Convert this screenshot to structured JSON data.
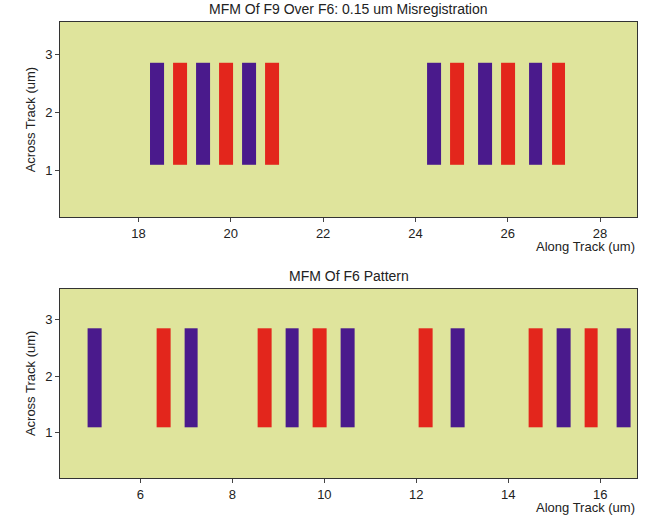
{
  "chart_data": [
    {
      "type": "heatmap",
      "title": "MFM Of F9 Over F6: 0.15 um Misregistration",
      "x_label": "Along Track (um)",
      "y_label": "Across Track (um)",
      "xlim": [
        16.3,
        28.8
      ],
      "ylim": [
        0.2,
        3.55
      ],
      "xticks": [
        18,
        20,
        22,
        24,
        26,
        28
      ],
      "yticks": [
        1,
        2,
        3
      ],
      "colors": [
        "#4a1a8c",
        "#e3261c"
      ],
      "zlim": [
        -1,
        1
      ],
      "cells": {
        "y": [
          1.1,
          2.85
        ],
        "stripes": [
          {
            "x0": 18.25,
            "x1": 18.55,
            "z": -1
          },
          {
            "x0": 18.75,
            "x1": 19.05,
            "z": 1
          },
          {
            "x0": 19.25,
            "x1": 19.55,
            "z": -1
          },
          {
            "x0": 19.75,
            "x1": 20.05,
            "z": 1
          },
          {
            "x0": 20.25,
            "x1": 20.55,
            "z": -1
          },
          {
            "x0": 20.75,
            "x1": 21.05,
            "z": 1
          },
          {
            "x0": 24.25,
            "x1": 24.55,
            "z": -1
          },
          {
            "x0": 24.75,
            "x1": 25.05,
            "z": 1
          },
          {
            "x0": 25.35,
            "x1": 25.65,
            "z": -1
          },
          {
            "x0": 25.85,
            "x1": 26.15,
            "z": 1
          },
          {
            "x0": 26.45,
            "x1": 26.75,
            "z": -1
          },
          {
            "x0": 26.95,
            "x1": 27.25,
            "z": 1
          }
        ]
      }
    },
    {
      "type": "heatmap",
      "title": "MFM Of F6 Pattern",
      "x_label": "Along Track (um)",
      "y_label": "Across Track (um)",
      "xlim": [
        4.25,
        16.8
      ],
      "ylim": [
        0.2,
        3.55
      ],
      "xticks": [
        6,
        8,
        10,
        12,
        14,
        16
      ],
      "yticks": [
        1,
        2,
        3
      ],
      "colors": [
        "#4a1a8c",
        "#e3261c"
      ],
      "zlim": [
        -1,
        1
      ],
      "cells": {
        "y": [
          1.1,
          2.85
        ],
        "stripes": [
          {
            "x0": 4.85,
            "x1": 5.15,
            "z": -1
          },
          {
            "x0": 6.35,
            "x1": 6.65,
            "z": 1
          },
          {
            "x0": 6.95,
            "x1": 7.25,
            "z": -1
          },
          {
            "x0": 8.55,
            "x1": 8.85,
            "z": 1
          },
          {
            "x0": 9.15,
            "x1": 9.45,
            "z": -1
          },
          {
            "x0": 9.75,
            "x1": 10.05,
            "z": 1
          },
          {
            "x0": 10.35,
            "x1": 10.65,
            "z": -1
          },
          {
            "x0": 12.05,
            "x1": 12.35,
            "z": 1
          },
          {
            "x0": 12.75,
            "x1": 13.05,
            "z": -1
          },
          {
            "x0": 14.45,
            "x1": 14.75,
            "z": 1
          },
          {
            "x0": 15.05,
            "x1": 15.35,
            "z": -1
          },
          {
            "x0": 15.65,
            "x1": 15.95,
            "z": 1
          },
          {
            "x0": 16.35,
            "x1": 16.65,
            "z": -1
          }
        ]
      }
    }
  ]
}
